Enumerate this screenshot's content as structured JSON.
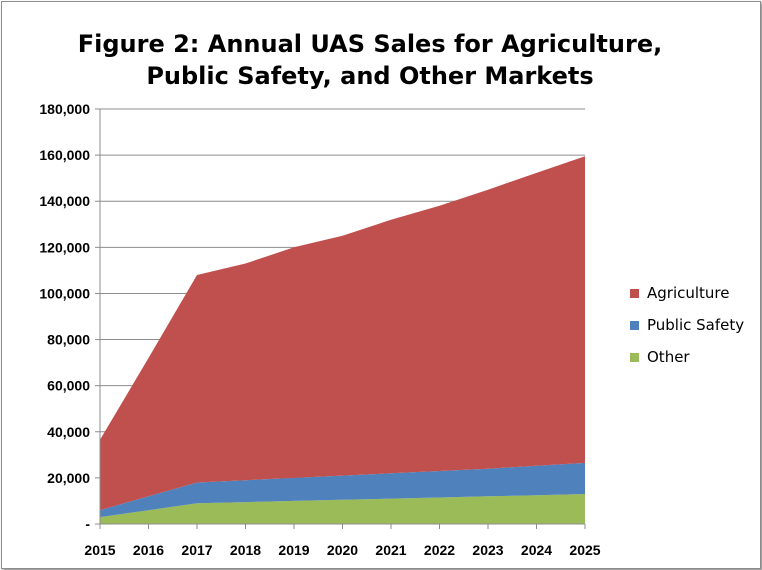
{
  "chart_data": {
    "type": "area",
    "stacked": true,
    "title_lines": [
      "Figure 2: Annual UAS Sales for Agriculture,",
      "Public Safety, and Other Markets"
    ],
    "x": [
      "2015",
      "2016",
      "2017",
      "2018",
      "2019",
      "2020",
      "2021",
      "2022",
      "2023",
      "2024",
      "2025"
    ],
    "y_ticks": [
      "-",
      "20,000",
      "40,000",
      "60,000",
      "80,000",
      "100,000",
      "120,000",
      "140,000",
      "160,000",
      "180,000"
    ],
    "ylim": [
      0,
      180000
    ],
    "grid": true,
    "legend_position": "right",
    "series": [
      {
        "name": "Other",
        "color": "#9bbb59",
        "values": [
          3000,
          6000,
          9000,
          9500,
          10000,
          10500,
          11000,
          11500,
          12000,
          12500,
          13000
        ]
      },
      {
        "name": "Public Safety",
        "color": "#4f81bd",
        "values": [
          3000,
          6000,
          9000,
          9500,
          10000,
          10500,
          11000,
          11500,
          12000,
          12800,
          13500
        ]
      },
      {
        "name": "Agriculture",
        "color": "#c0504d",
        "values": [
          30500,
          60000,
          90000,
          94000,
          100000,
          104000,
          110000,
          115000,
          121000,
          127000,
          133000
        ]
      }
    ]
  }
}
